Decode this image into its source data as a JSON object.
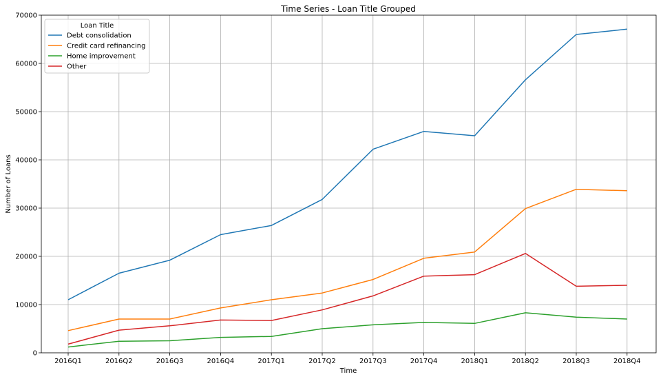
{
  "chart_data": {
    "type": "line",
    "title": "Time Series - Loan Title Grouped",
    "xlabel": "Time",
    "ylabel": "Number of Loans",
    "categories": [
      "2016Q1",
      "2016Q2",
      "2016Q3",
      "2016Q4",
      "2017Q1",
      "2017Q2",
      "2017Q3",
      "2017Q4",
      "2018Q1",
      "2018Q2",
      "2018Q3",
      "2018Q4"
    ],
    "ylim": [
      0,
      70000
    ],
    "yticks": [
      0,
      10000,
      20000,
      30000,
      40000,
      50000,
      60000,
      70000
    ],
    "grid": true,
    "legend": {
      "title": "Loan Title",
      "placement": "top-left"
    },
    "series": [
      {
        "name": "Debt consolidation",
        "color": "#1f77b4",
        "values": [
          11000,
          16500,
          19200,
          24500,
          26400,
          31800,
          42200,
          45900,
          45000,
          56600,
          66000,
          67100
        ]
      },
      {
        "name": "Credit card refinancing",
        "color": "#ff7f0e",
        "values": [
          4600,
          7000,
          7000,
          9300,
          11000,
          12400,
          15200,
          19600,
          20900,
          29900,
          33900,
          33600
        ]
      },
      {
        "name": "Home improvement",
        "color": "#2ca02c",
        "values": [
          1200,
          2400,
          2500,
          3200,
          3400,
          5000,
          5800,
          6300,
          6100,
          8300,
          7400,
          7000
        ]
      },
      {
        "name": "Other",
        "color": "#d62728",
        "values": [
          1800,
          4700,
          5600,
          6800,
          6700,
          8900,
          11800,
          15900,
          16200,
          20600,
          13800,
          14000
        ]
      }
    ]
  }
}
